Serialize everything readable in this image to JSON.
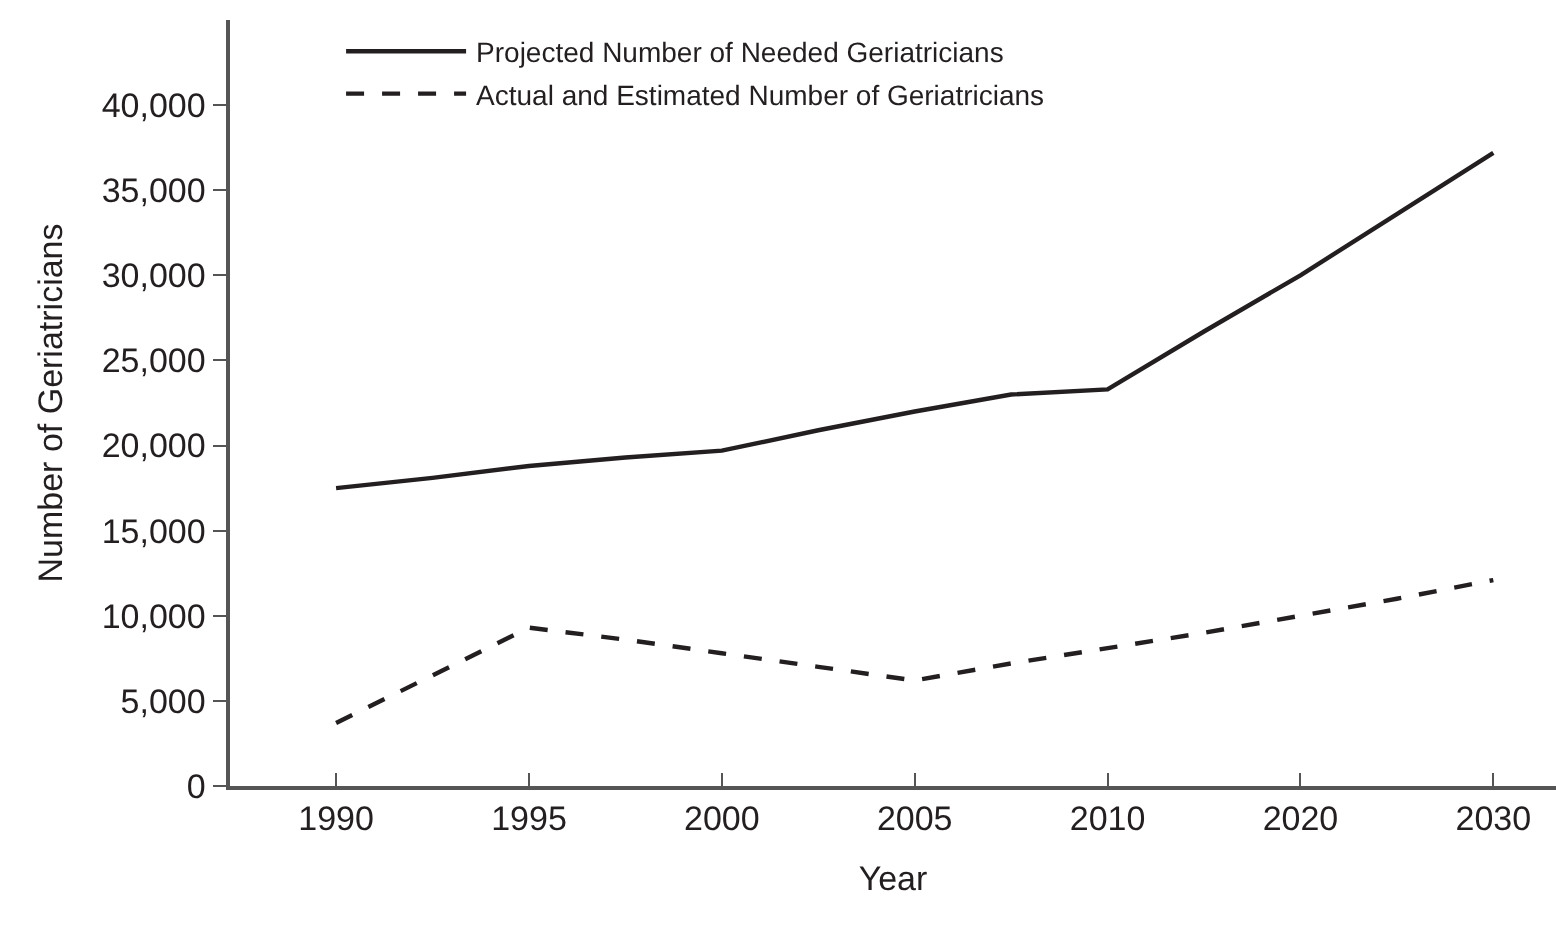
{
  "chart_data": {
    "type": "line",
    "xlabel": "Year",
    "ylabel": "Number of Geriatricians",
    "categories": [
      "1990",
      null,
      "1995",
      null,
      "2000",
      null,
      "2005",
      null,
      "2010",
      null,
      "2020",
      null,
      "2030"
    ],
    "ylim": [
      0,
      45000
    ],
    "yticks": [
      0,
      {
        "value": 5000,
        "label": "5,000"
      },
      {
        "value": 10000,
        "label": "10,000"
      },
      {
        "value": 15000,
        "label": "15,000"
      },
      {
        "value": 20000,
        "label": "20,000"
      },
      {
        "value": 25000,
        "label": "25,000"
      },
      {
        "value": 30000,
        "label": "30,000"
      },
      {
        "value": 35000,
        "label": "35,000"
      },
      {
        "value": 40000,
        "label": "40,000"
      }
    ],
    "series": [
      {
        "name": "Projected Number of Needed Geriatricians",
        "color": "#231f20",
        "line_style": "solid",
        "values": [
          17500,
          18100,
          18800,
          19300,
          19700,
          20900,
          22000,
          23000,
          23300,
          26700,
          30000,
          33600,
          37200
        ]
      },
      {
        "name": "Actual and Estimated Number of Geriatricians",
        "color": "#231f20",
        "line_style": "dashed",
        "values": [
          3700,
          6500,
          9300,
          8600,
          7800,
          7000,
          6200,
          7200,
          8100,
          9000,
          10000,
          11000,
          12100
        ]
      }
    ],
    "legend": "top",
    "marker": "none"
  }
}
